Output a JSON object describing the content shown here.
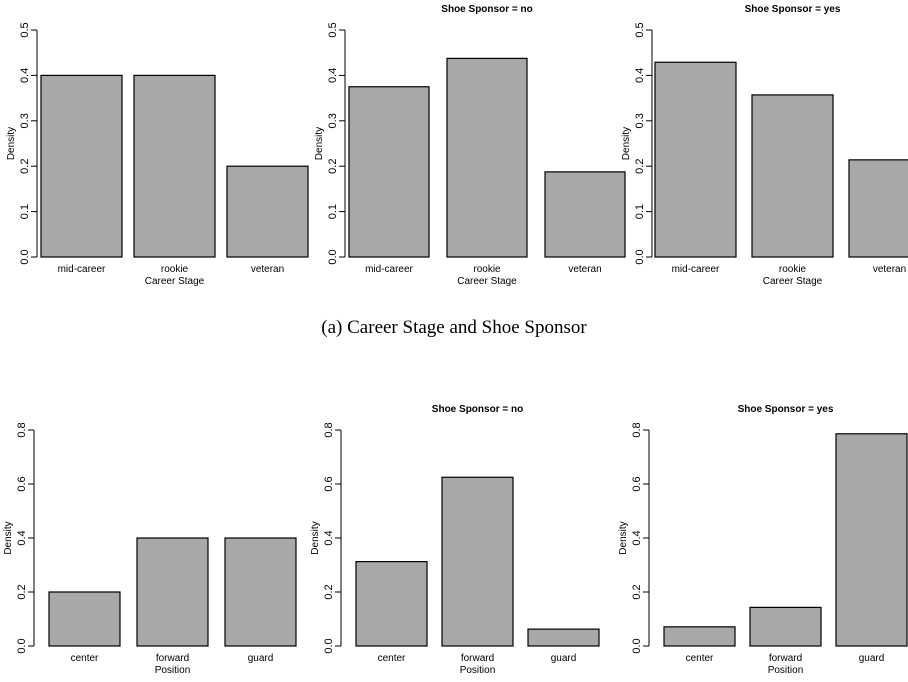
{
  "captions": {
    "top": "(a) Career Stage and Shoe Sponsor"
  },
  "colors": {
    "bar_fill": "#a8a8a8",
    "bar_stroke": "#000000",
    "axis": "#000000"
  },
  "chart_data": [
    {
      "type": "bar",
      "title": "",
      "xlabel": "Career Stage",
      "ylabel": "Density",
      "categories": [
        "mid-career",
        "rookie",
        "veteran"
      ],
      "values": [
        0.4,
        0.4,
        0.2
      ],
      "ylim": [
        0,
        0.5
      ],
      "yticks": [
        "0.0",
        "0.1",
        "0.2",
        "0.3",
        "0.4",
        "0.5"
      ],
      "grid": false
    },
    {
      "type": "bar",
      "title": "Shoe Sponsor = no",
      "xlabel": "Career Stage",
      "ylabel": "Density",
      "categories": [
        "mid-career",
        "rookie",
        "veteran"
      ],
      "values": [
        0.375,
        0.4375,
        0.1875
      ],
      "ylim": [
        0,
        0.5
      ],
      "yticks": [
        "0.0",
        "0.1",
        "0.2",
        "0.3",
        "0.4",
        "0.5"
      ],
      "grid": false
    },
    {
      "type": "bar",
      "title": "Shoe Sponsor = yes",
      "xlabel": "Career Stage",
      "ylabel": "Density",
      "categories": [
        "mid-career",
        "rookie",
        "veteran"
      ],
      "values": [
        0.429,
        0.357,
        0.214
      ],
      "ylim": [
        0,
        0.5
      ],
      "yticks": [
        "0.0",
        "0.1",
        "0.2",
        "0.3",
        "0.4",
        "0.5"
      ],
      "grid": false
    },
    {
      "type": "bar",
      "title": "",
      "xlabel": "Position",
      "ylabel": "Density",
      "categories": [
        "center",
        "forward",
        "guard"
      ],
      "values": [
        0.2,
        0.4,
        0.4
      ],
      "ylim": [
        0,
        0.8
      ],
      "yticks": [
        "0.0",
        "0.2",
        "0.4",
        "0.6",
        "0.8"
      ],
      "grid": false
    },
    {
      "type": "bar",
      "title": "Shoe Sponsor = no",
      "xlabel": "Position",
      "ylabel": "Density",
      "categories": [
        "center",
        "forward",
        "guard"
      ],
      "values": [
        0.3125,
        0.625,
        0.0625
      ],
      "ylim": [
        0,
        0.8
      ],
      "yticks": [
        "0.0",
        "0.2",
        "0.4",
        "0.6",
        "0.8"
      ],
      "grid": false
    },
    {
      "type": "bar",
      "title": "Shoe Sponsor = yes",
      "xlabel": "Position",
      "ylabel": "Density",
      "categories": [
        "center",
        "forward",
        "guard"
      ],
      "values": [
        0.071,
        0.143,
        0.786
      ],
      "ylim": [
        0,
        0.8
      ],
      "yticks": [
        "0.0",
        "0.2",
        "0.4",
        "0.6",
        "0.8"
      ],
      "grid": false
    }
  ]
}
